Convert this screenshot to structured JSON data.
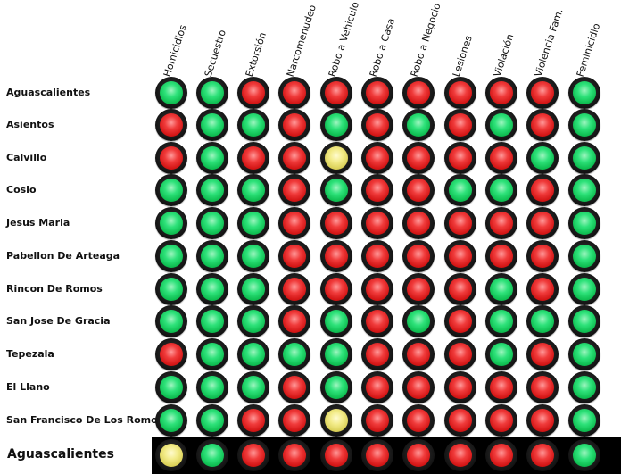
{
  "columns": [
    "Homicidios",
    "Secuestro",
    "Extorsión",
    "Narcomenudeo",
    "Robo a Vehiculo",
    "Robo a Casa",
    "Robo a Negocio",
    "Lesiones",
    "Violación",
    "Violencia Fam.",
    "Feminicidio"
  ],
  "rows": [
    {
      "label": "Aguascalientes",
      "lights": [
        "green",
        "green",
        "red",
        "red",
        "red",
        "red",
        "red",
        "red",
        "red",
        "red",
        "green"
      ]
    },
    {
      "label": "Asientos",
      "lights": [
        "red",
        "green",
        "green",
        "red",
        "green",
        "red",
        "green",
        "red",
        "green",
        "red",
        "green"
      ]
    },
    {
      "label": "Calvillo",
      "lights": [
        "red",
        "green",
        "red",
        "red",
        "yellow",
        "red",
        "red",
        "red",
        "red",
        "green",
        "green"
      ]
    },
    {
      "label": "Cosio",
      "lights": [
        "green",
        "green",
        "green",
        "red",
        "green",
        "red",
        "red",
        "green",
        "green",
        "red",
        "green"
      ]
    },
    {
      "label": "Jesus Maria",
      "lights": [
        "green",
        "green",
        "green",
        "red",
        "red",
        "red",
        "red",
        "red",
        "red",
        "red",
        "green"
      ]
    },
    {
      "label": "Pabellon De Arteaga",
      "lights": [
        "green",
        "green",
        "green",
        "red",
        "red",
        "red",
        "red",
        "red",
        "red",
        "red",
        "green"
      ]
    },
    {
      "label": "Rincon De Romos",
      "lights": [
        "green",
        "green",
        "green",
        "red",
        "red",
        "red",
        "red",
        "red",
        "green",
        "red",
        "green"
      ]
    },
    {
      "label": "San Jose De Gracia",
      "lights": [
        "green",
        "green",
        "green",
        "red",
        "green",
        "red",
        "green",
        "red",
        "green",
        "green",
        "green"
      ]
    },
    {
      "label": "Tepezala",
      "lights": [
        "red",
        "green",
        "green",
        "green",
        "green",
        "red",
        "red",
        "red",
        "green",
        "red",
        "green"
      ]
    },
    {
      "label": "El Llano",
      "lights": [
        "green",
        "green",
        "green",
        "red",
        "green",
        "red",
        "red",
        "red",
        "red",
        "red",
        "green"
      ]
    },
    {
      "label": "San Francisco De Los Romo",
      "lights": [
        "green",
        "green",
        "red",
        "red",
        "yellow",
        "red",
        "red",
        "red",
        "red",
        "red",
        "green"
      ]
    }
  ],
  "total": {
    "label": "Aguascalientes",
    "lights": [
      "yellow",
      "green",
      "red",
      "red",
      "red",
      "red",
      "red",
      "red",
      "red",
      "red",
      "green"
    ]
  },
  "colors": {
    "green": "#1fd36a",
    "red": "#e52222",
    "yellow": "#efe67a",
    "total_band": "#000000"
  }
}
